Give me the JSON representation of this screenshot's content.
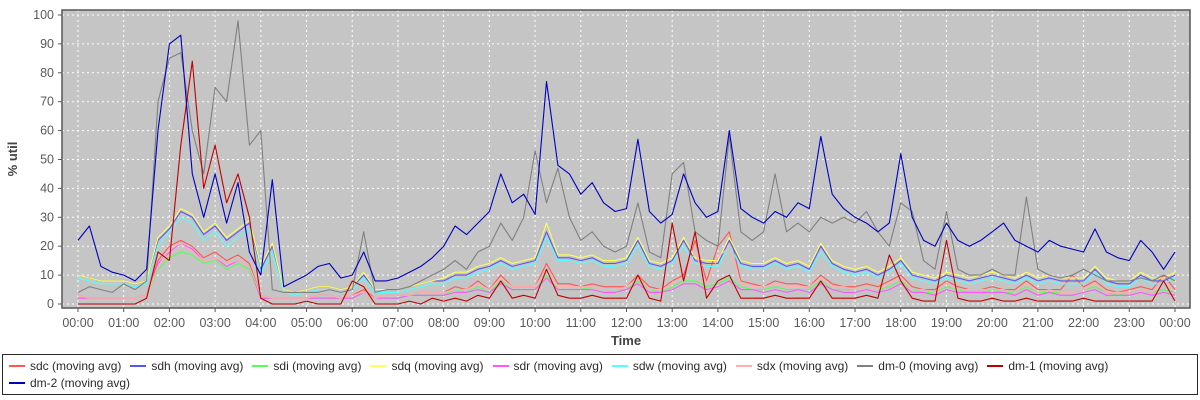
{
  "chart_data": {
    "type": "line",
    "title": "",
    "xlabel": "Time",
    "ylabel": "% util",
    "ylim": [
      0,
      100
    ],
    "grid": true,
    "legend_position": "bottom",
    "plot_background": "#c5c5c5",
    "grid_color": "#ffffff",
    "axis_text_color": "#595959",
    "axis_title_color": "#444444",
    "plot_border_color": "#575757",
    "sample_interval_minutes": 15,
    "x_tick_hours": [
      0,
      1,
      2,
      3,
      4,
      5,
      6,
      7,
      8,
      9,
      10,
      11,
      12,
      13,
      14,
      15,
      16,
      17,
      18,
      19,
      20,
      21,
      22,
      23,
      24
    ],
    "x_tick_labels": [
      "00:00",
      "01:00",
      "02:00",
      "03:00",
      "04:00",
      "05:00",
      "06:00",
      "07:00",
      "08:00",
      "09:00",
      "10:00",
      "11:00",
      "12:00",
      "13:00",
      "14:00",
      "15:00",
      "16:00",
      "17:00",
      "18:00",
      "19:00",
      "20:00",
      "21:00",
      "22:00",
      "23:00",
      "00:00"
    ],
    "y_ticks": [
      0,
      10,
      20,
      30,
      40,
      50,
      60,
      70,
      80,
      90,
      100
    ],
    "series": [
      {
        "name": "sdc (moving avg)",
        "color": "#FF5555",
        "values": [
          3,
          2,
          2,
          2,
          2,
          2,
          3,
          15,
          20,
          22,
          20,
          16,
          18,
          15,
          17,
          14,
          3,
          2,
          2,
          2,
          2,
          3,
          3,
          2,
          3,
          5,
          2,
          3,
          3,
          3,
          4,
          4,
          4,
          6,
          5,
          8,
          5,
          10,
          6,
          6,
          6,
          14,
          7,
          7,
          6,
          7,
          6,
          6,
          6,
          10,
          6,
          5,
          8,
          10,
          22,
          8,
          20,
          25,
          8,
          7,
          6,
          8,
          7,
          7,
          6,
          10,
          7,
          6,
          6,
          7,
          6,
          8,
          10,
          6,
          5,
          5,
          8,
          6,
          5,
          5,
          6,
          5,
          5,
          8,
          5,
          5,
          5,
          10,
          6,
          8,
          5,
          4,
          5,
          6,
          5,
          10,
          5
        ]
      },
      {
        "name": "sdh (moving avg)",
        "color": "#5555FF",
        "values": [
          10,
          9,
          8,
          8,
          8,
          7,
          8,
          22,
          26,
          32,
          30,
          24,
          27,
          22,
          25,
          28,
          12,
          20,
          5,
          4,
          5,
          6,
          6,
          5,
          6,
          10,
          5,
          5,
          5,
          6,
          7,
          8,
          8,
          10,
          10,
          12,
          13,
          15,
          13,
          14,
          15,
          25,
          16,
          16,
          15,
          16,
          14,
          14,
          15,
          22,
          14,
          13,
          15,
          22,
          15,
          14,
          14,
          22,
          14,
          13,
          13,
          15,
          13,
          14,
          12,
          20,
          14,
          12,
          11,
          12,
          10,
          12,
          15,
          10,
          9,
          8,
          10,
          9,
          8,
          9,
          10,
          9,
          8,
          10,
          8,
          9,
          8,
          8,
          8,
          12,
          8,
          7,
          7,
          10,
          8,
          8,
          10
        ]
      },
      {
        "name": "sdi (moving avg)",
        "color": "#55FF55",
        "values": [
          2,
          2,
          2,
          2,
          2,
          2,
          3,
          12,
          16,
          18,
          17,
          14,
          15,
          12,
          14,
          12,
          2,
          2,
          2,
          2,
          2,
          2,
          2,
          2,
          2,
          4,
          2,
          2,
          2,
          3,
          3,
          3,
          3,
          5,
          4,
          6,
          4,
          8,
          5,
          5,
          5,
          10,
          5,
          5,
          5,
          6,
          5,
          5,
          5,
          8,
          5,
          4,
          6,
          8,
          8,
          6,
          7,
          9,
          6,
          5,
          5,
          6,
          5,
          5,
          5,
          8,
          5,
          5,
          5,
          6,
          5,
          6,
          8,
          5,
          4,
          4,
          6,
          5,
          4,
          4,
          5,
          4,
          4,
          6,
          4,
          4,
          4,
          4,
          5,
          6,
          4,
          3,
          4,
          5,
          4,
          5,
          4
        ]
      },
      {
        "name": "sdq (moving avg)",
        "color": "#FFFF55",
        "values": [
          10,
          9,
          8,
          8,
          8,
          7,
          8,
          23,
          27,
          33,
          31,
          25,
          28,
          23,
          26,
          29,
          13,
          21,
          5,
          4,
          5,
          6,
          6,
          5,
          6,
          11,
          5,
          5,
          5,
          6,
          7,
          8,
          9,
          11,
          11,
          13,
          14,
          16,
          14,
          15,
          16,
          28,
          17,
          17,
          16,
          17,
          15,
          15,
          16,
          23,
          15,
          14,
          16,
          23,
          16,
          15,
          15,
          23,
          15,
          14,
          14,
          16,
          14,
          15,
          13,
          21,
          15,
          13,
          12,
          13,
          11,
          13,
          16,
          11,
          10,
          9,
          11,
          10,
          9,
          10,
          11,
          10,
          9,
          11,
          9,
          10,
          9,
          9,
          9,
          13,
          9,
          8,
          8,
          11,
          9,
          9,
          11
        ]
      },
      {
        "name": "sdr (moving avg)",
        "color": "#FF55FF",
        "values": [
          2,
          2,
          2,
          2,
          2,
          2,
          3,
          14,
          18,
          21,
          19,
          15,
          16,
          13,
          15,
          13,
          2,
          2,
          2,
          2,
          2,
          2,
          2,
          2,
          2,
          4,
          2,
          2,
          2,
          3,
          3,
          3,
          3,
          4,
          4,
          5,
          4,
          7,
          5,
          5,
          5,
          9,
          5,
          5,
          5,
          5,
          4,
          4,
          5,
          7,
          4,
          4,
          5,
          7,
          7,
          5,
          6,
          8,
          5,
          5,
          4,
          5,
          4,
          5,
          4,
          7,
          5,
          4,
          4,
          5,
          4,
          5,
          7,
          4,
          4,
          3,
          5,
          4,
          4,
          4,
          4,
          4,
          3,
          5,
          3,
          4,
          3,
          3,
          4,
          5,
          3,
          3,
          3,
          4,
          3,
          4,
          3
        ]
      },
      {
        "name": "sdw (moving avg)",
        "color": "#55FFFF",
        "values": [
          9,
          8,
          7,
          7,
          7,
          6,
          7,
          20,
          25,
          30,
          28,
          22,
          25,
          20,
          23,
          26,
          11,
          18,
          4,
          3,
          4,
          5,
          5,
          4,
          5,
          9,
          4,
          4,
          4,
          5,
          6,
          7,
          7,
          9,
          9,
          11,
          12,
          14,
          12,
          13,
          14,
          23,
          15,
          15,
          14,
          15,
          13,
          13,
          14,
          20,
          13,
          12,
          14,
          20,
          14,
          13,
          13,
          20,
          13,
          12,
          12,
          14,
          12,
          13,
          11,
          18,
          13,
          11,
          10,
          11,
          9,
          11,
          14,
          9,
          8,
          7,
          9,
          8,
          7,
          8,
          9,
          8,
          7,
          9,
          7,
          8,
          7,
          7,
          7,
          11,
          7,
          6,
          6,
          9,
          7,
          7,
          9
        ]
      },
      {
        "name": "sdx (moving avg)",
        "color": "#FFAFAF",
        "values": [
          3,
          2,
          2,
          2,
          2,
          2,
          3,
          13,
          19,
          21,
          18,
          15,
          16,
          14,
          15,
          13,
          3,
          2,
          2,
          2,
          2,
          3,
          3,
          2,
          3,
          4,
          2,
          3,
          3,
          3,
          4,
          4,
          4,
          5,
          5,
          7,
          5,
          9,
          6,
          6,
          6,
          12,
          6,
          6,
          6,
          6,
          5,
          5,
          6,
          9,
          5,
          5,
          7,
          9,
          18,
          7,
          16,
          20,
          7,
          6,
          6,
          7,
          6,
          6,
          6,
          9,
          6,
          6,
          5,
          6,
          5,
          7,
          9,
          5,
          5,
          4,
          7,
          5,
          5,
          5,
          5,
          5,
          4,
          7,
          4,
          5,
          4,
          4,
          5,
          7,
          4,
          4,
          4,
          5,
          4,
          8,
          4
        ]
      },
      {
        "name": "dm-0 (moving avg)",
        "color": "#808080",
        "values": [
          4,
          6,
          5,
          4,
          7,
          5,
          8,
          70,
          85,
          87,
          60,
          45,
          75,
          70,
          98,
          55,
          60,
          5,
          4,
          4,
          4,
          4,
          5,
          4,
          5,
          25,
          4,
          5,
          5,
          6,
          8,
          10,
          12,
          15,
          12,
          18,
          20,
          28,
          22,
          30,
          53,
          35,
          47,
          30,
          22,
          25,
          20,
          18,
          20,
          35,
          18,
          16,
          45,
          49,
          25,
          22,
          20,
          58,
          25,
          22,
          25,
          45,
          25,
          28,
          25,
          30,
          28,
          30,
          28,
          32,
          25,
          20,
          35,
          32,
          15,
          12,
          32,
          12,
          10,
          10,
          12,
          10,
          10,
          37,
          12,
          10,
          9,
          10,
          12,
          10,
          8,
          8,
          8,
          9,
          8,
          10,
          8
        ]
      },
      {
        "name": "dm-1 (moving avg)",
        "color": "#C00000",
        "values": [
          0,
          0,
          0,
          0,
          0,
          0,
          2,
          18,
          15,
          55,
          84,
          40,
          55,
          35,
          45,
          30,
          2,
          0,
          0,
          0,
          1,
          0,
          0,
          0,
          8,
          6,
          0,
          0,
          0,
          1,
          0,
          2,
          1,
          2,
          1,
          3,
          2,
          8,
          2,
          3,
          2,
          12,
          3,
          2,
          2,
          3,
          2,
          2,
          2,
          10,
          2,
          1,
          28,
          8,
          25,
          2,
          8,
          10,
          2,
          2,
          2,
          3,
          2,
          2,
          2,
          8,
          2,
          2,
          2,
          3,
          2,
          17,
          8,
          2,
          1,
          1,
          22,
          2,
          1,
          1,
          2,
          1,
          1,
          2,
          1,
          1,
          1,
          1,
          2,
          1,
          1,
          1,
          1,
          1,
          1,
          8,
          1
        ]
      },
      {
        "name": "dm-2 (moving avg)",
        "color": "#0000C0",
        "values": [
          22,
          27,
          13,
          11,
          10,
          8,
          12,
          60,
          90,
          93,
          45,
          30,
          45,
          28,
          42,
          18,
          10,
          43,
          6,
          8,
          10,
          13,
          14,
          9,
          10,
          18,
          8,
          8,
          9,
          11,
          13,
          16,
          20,
          27,
          24,
          28,
          32,
          45,
          35,
          38,
          31,
          77,
          48,
          45,
          38,
          42,
          35,
          32,
          33,
          57,
          32,
          28,
          31,
          45,
          35,
          30,
          32,
          60,
          33,
          30,
          28,
          32,
          30,
          35,
          33,
          58,
          38,
          33,
          30,
          28,
          25,
          28,
          52,
          30,
          22,
          20,
          28,
          22,
          20,
          22,
          25,
          28,
          22,
          20,
          18,
          22,
          20,
          19,
          18,
          26,
          18,
          16,
          15,
          22,
          18,
          12,
          18
        ]
      }
    ]
  }
}
